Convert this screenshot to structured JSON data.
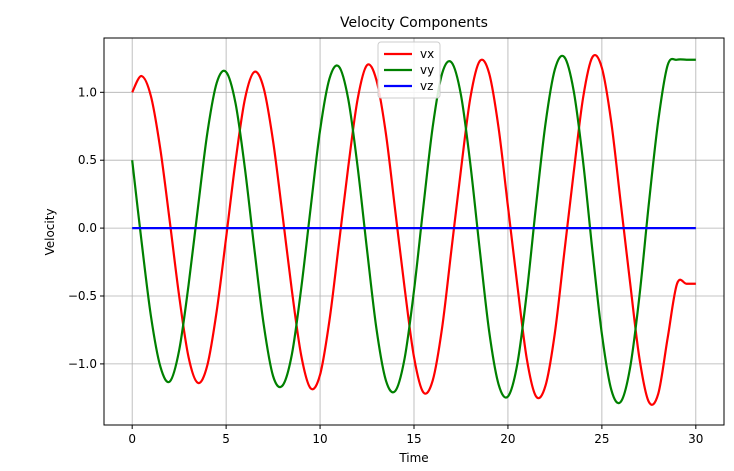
{
  "chart_data": {
    "type": "line",
    "title": "Velocity Components",
    "xlabel": "Time",
    "ylabel": "Velocity",
    "xlim": [
      -1.5,
      31.5
    ],
    "ylim": [
      -1.45,
      1.4
    ],
    "xticks": [
      0,
      5,
      10,
      15,
      20,
      25,
      30
    ],
    "xtick_labels": [
      "0",
      "5",
      "10",
      "15",
      "20",
      "25",
      "30"
    ],
    "yticks": [
      -1.0,
      -0.5,
      0.0,
      0.5,
      1.0
    ],
    "ytick_labels": [
      "−1.0",
      "−0.5",
      "0.0",
      "0.5",
      "1.0"
    ],
    "grid": true,
    "legend_position": "top-center",
    "series": [
      {
        "name": "vx",
        "color": "#ff0000",
        "x": [
          0.0,
          0.5,
          1.0,
          1.5,
          2.0,
          2.5,
          3.0,
          3.5,
          4.0,
          4.5,
          5.0,
          5.5,
          6.0,
          6.5,
          7.0,
          7.5,
          8.0,
          8.5,
          9.0,
          9.5,
          10.0,
          10.5,
          11.0,
          11.5,
          12.0,
          12.5,
          13.0,
          13.5,
          14.0,
          14.5,
          15.0,
          15.5,
          16.0,
          16.5,
          17.0,
          17.5,
          18.0,
          18.5,
          19.0,
          19.5,
          20.0,
          20.5,
          21.0,
          21.5,
          22.0,
          22.5,
          23.0,
          23.5,
          24.0,
          24.5,
          25.0,
          25.5,
          26.0,
          26.5,
          27.0,
          27.5,
          28.0,
          28.5,
          29.0,
          29.5,
          30.0
        ],
        "values": [
          1.0,
          1.12,
          0.97,
          0.58,
          0.05,
          -0.5,
          -0.95,
          -1.14,
          -1.01,
          -0.61,
          -0.07,
          0.49,
          0.95,
          1.15,
          1.03,
          0.64,
          0.1,
          -0.46,
          -0.94,
          -1.18,
          -1.08,
          -0.68,
          -0.12,
          0.45,
          0.95,
          1.2,
          1.09,
          0.7,
          0.13,
          -0.44,
          -0.95,
          -1.21,
          -1.12,
          -0.73,
          -0.15,
          0.43,
          0.96,
          1.23,
          1.14,
          0.74,
          0.16,
          -0.42,
          -0.96,
          -1.24,
          -1.16,
          -0.77,
          -0.18,
          0.41,
          0.96,
          1.26,
          1.18,
          0.78,
          0.19,
          -0.4,
          -0.96,
          -1.28,
          -1.22,
          -0.81,
          -0.41,
          -0.41,
          -0.41
        ]
      },
      {
        "name": "vy",
        "color": "#008000",
        "x": [
          0.0,
          0.5,
          1.0,
          1.5,
          2.0,
          2.5,
          3.0,
          3.5,
          4.0,
          4.5,
          5.0,
          5.5,
          6.0,
          6.5,
          7.0,
          7.5,
          8.0,
          8.5,
          9.0,
          9.5,
          10.0,
          10.5,
          11.0,
          11.5,
          12.0,
          12.5,
          13.0,
          13.5,
          14.0,
          14.5,
          15.0,
          15.5,
          16.0,
          16.5,
          17.0,
          17.5,
          18.0,
          18.5,
          19.0,
          19.5,
          20.0,
          20.5,
          21.0,
          21.5,
          22.0,
          22.5,
          23.0,
          23.5,
          24.0,
          24.5,
          25.0,
          25.5,
          26.0,
          26.5,
          27.0,
          27.5,
          28.0,
          28.5,
          29.0,
          29.5,
          30.0
        ],
        "values": [
          0.5,
          -0.1,
          -0.65,
          -1.02,
          -1.13,
          -0.9,
          -0.42,
          0.15,
          0.7,
          1.07,
          1.15,
          0.92,
          0.44,
          -0.15,
          -0.71,
          -1.09,
          -1.16,
          -0.93,
          -0.44,
          0.15,
          0.72,
          1.1,
          1.19,
          0.95,
          0.45,
          -0.16,
          -0.74,
          -1.12,
          -1.2,
          -0.96,
          -0.46,
          0.16,
          0.75,
          1.14,
          1.22,
          0.98,
          0.47,
          -0.16,
          -0.76,
          -1.15,
          -1.24,
          -1.0,
          -0.48,
          0.17,
          0.77,
          1.17,
          1.26,
          1.01,
          0.49,
          -0.17,
          -0.78,
          -1.19,
          -1.28,
          -1.03,
          -0.5,
          0.18,
          0.79,
          1.2,
          1.24,
          1.24,
          1.24
        ]
      },
      {
        "name": "vz",
        "color": "#0000ff",
        "x": [
          0.0,
          30.0
        ],
        "values": [
          0.0,
          0.0
        ]
      }
    ]
  }
}
